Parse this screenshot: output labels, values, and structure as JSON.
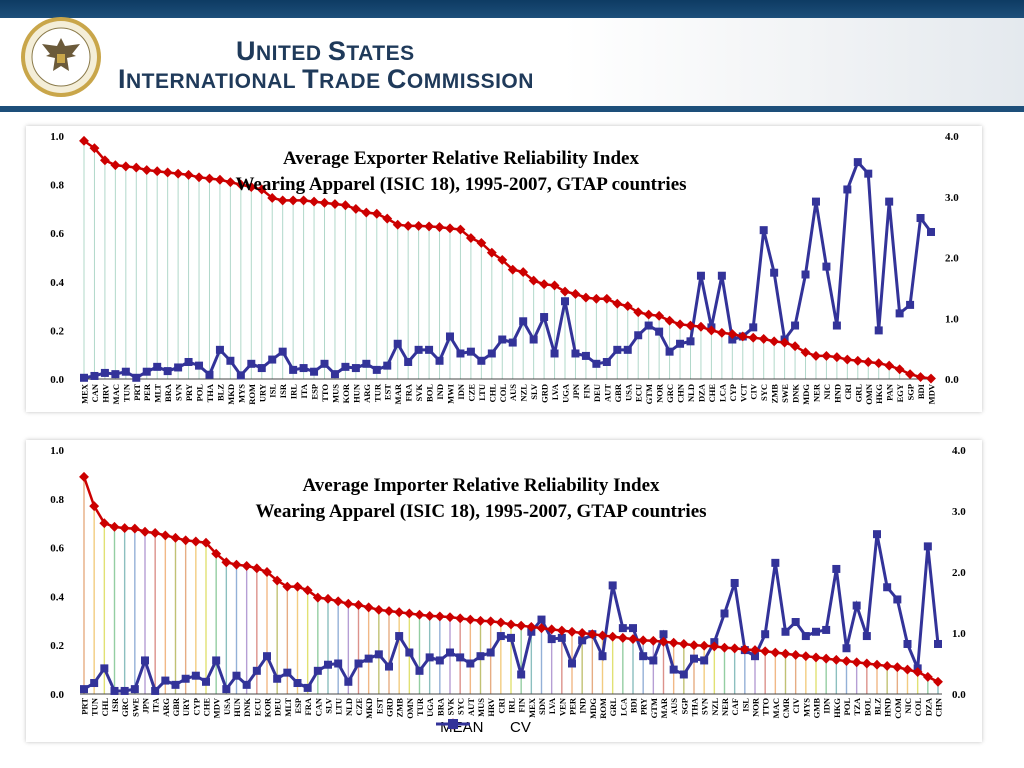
{
  "header": {
    "line1_big1": "U",
    "line1_rest1": "NITED ",
    "line1_big2": "S",
    "line1_rest2": "TATES",
    "line2_big1": "I",
    "line2_rest1": "NTERNATIONAL ",
    "line2_big2": "T",
    "line2_rest2": "RADE ",
    "line2_big3": "C",
    "line2_rest3": "OMMISSION"
  },
  "colors": {
    "mean": "#cc0000",
    "cv": "#333399",
    "header": "#1d4f7a"
  },
  "chart_data": [
    {
      "type": "line",
      "title": "Average Exporter Relative Reliability Index",
      "subtitle": "Wearing Apparel (ISIC 18), 1995-2007, GTAP countries",
      "left_axis": {
        "ylim": [
          0,
          1
        ],
        "ticks": [
          "0.0",
          "0.2",
          "0.4",
          "0.6",
          "0.8",
          "1.0"
        ]
      },
      "right_axis": {
        "ylim": [
          0,
          4
        ],
        "ticks": [
          "0.0",
          "1.0",
          "2.0",
          "3.0",
          "4.0"
        ]
      },
      "categories": [
        "MEX",
        "CAN",
        "HRV",
        "MAC",
        "TUN",
        "PRT",
        "PER",
        "MLT",
        "BRA",
        "SVN",
        "PRY",
        "POL",
        "THA",
        "BLZ",
        "MKD",
        "MYS",
        "ROM",
        "URY",
        "ISL",
        "ISR",
        "IRL",
        "ITA",
        "ESP",
        "TTO",
        "MUS",
        "KOR",
        "HUN",
        "ARG",
        "TUR",
        "EST",
        "MAR",
        "FRA",
        "SVK",
        "BOL",
        "IND",
        "MWI",
        "IDN",
        "CZE",
        "LTU",
        "CHL",
        "COL",
        "AUS",
        "NZL",
        "SLV",
        "GRD",
        "LVA",
        "UGA",
        "JPN",
        "FIN",
        "DEU",
        "AUT",
        "GBR",
        "USA",
        "ECU",
        "GTM",
        "NOR",
        "GRC",
        "CHN",
        "NLD",
        "DZA",
        "CHE",
        "LCA",
        "CYP",
        "VCT",
        "CIV",
        "SYC",
        "ZMB",
        "SWE",
        "DNK",
        "MDG",
        "NER",
        "NIC",
        "HND",
        "CRI",
        "GRL",
        "OMN",
        "HKG",
        "PAN",
        "EGY",
        "SGP",
        "BDI",
        "MDV"
      ],
      "series": [
        {
          "name": "MEAN",
          "axis": "left",
          "values": [
            0.98,
            0.95,
            0.9,
            0.88,
            0.875,
            0.87,
            0.86,
            0.855,
            0.85,
            0.845,
            0.84,
            0.83,
            0.825,
            0.82,
            0.81,
            0.8,
            0.79,
            0.78,
            0.745,
            0.735,
            0.735,
            0.735,
            0.73,
            0.725,
            0.72,
            0.715,
            0.7,
            0.685,
            0.68,
            0.66,
            0.635,
            0.63,
            0.63,
            0.628,
            0.625,
            0.62,
            0.615,
            0.58,
            0.56,
            0.52,
            0.49,
            0.45,
            0.44,
            0.405,
            0.39,
            0.385,
            0.36,
            0.35,
            0.335,
            0.33,
            0.33,
            0.31,
            0.3,
            0.275,
            0.265,
            0.26,
            0.24,
            0.225,
            0.22,
            0.215,
            0.2,
            0.19,
            0.185,
            0.175,
            0.17,
            0.165,
            0.155,
            0.15,
            0.135,
            0.11,
            0.095,
            0.095,
            0.09,
            0.08,
            0.075,
            0.07,
            0.065,
            0.055,
            0.04,
            0.02,
            0.008,
            0.002
          ]
        },
        {
          "name": "CV",
          "axis": "right",
          "values": [
            0.02,
            0.05,
            0.1,
            0.08,
            0.12,
            0.02,
            0.12,
            0.2,
            0.13,
            0.19,
            0.28,
            0.22,
            0.07,
            0.48,
            0.3,
            0.06,
            0.25,
            0.18,
            0.32,
            0.45,
            0.15,
            0.18,
            0.12,
            0.25,
            0.08,
            0.2,
            0.18,
            0.25,
            0.15,
            0.22,
            0.58,
            0.28,
            0.48,
            0.48,
            0.3,
            0.7,
            0.42,
            0.45,
            0.3,
            0.42,
            0.65,
            0.6,
            0.95,
            0.65,
            1.02,
            0.42,
            1.28,
            0.42,
            0.38,
            0.25,
            0.28,
            0.48,
            0.48,
            0.72,
            0.88,
            0.78,
            0.45,
            0.58,
            0.62,
            1.7,
            0.85,
            1.7,
            0.65,
            0.7,
            0.85,
            2.45,
            1.75,
            0.65,
            0.88,
            1.72,
            2.92,
            1.85,
            0.88,
            3.12,
            3.57,
            3.38,
            0.8,
            2.92,
            1.08,
            1.22,
            2.65,
            2.42
          ]
        }
      ]
    },
    {
      "type": "line",
      "title": "Average Importer Relative Reliability Index",
      "subtitle": "Wearing Apparel (ISIC 18), 1995-2007, GTAP countries",
      "left_axis": {
        "ylim": [
          0,
          1
        ],
        "ticks": [
          "0.0",
          "0.2",
          "0.4",
          "0.6",
          "0.8",
          "1.0"
        ]
      },
      "right_axis": {
        "ylim": [
          0,
          4
        ],
        "ticks": [
          "0.0",
          "1.0",
          "2.0",
          "3.0",
          "4.0"
        ]
      },
      "categories": [
        "PRT",
        "TUN",
        "CHL",
        "ISR",
        "GRC",
        "SWE",
        "JPN",
        "ITA",
        "ARG",
        "GBR",
        "URY",
        "CYP",
        "CHE",
        "MDV",
        "USA",
        "HUN",
        "DNK",
        "ECU",
        "KOR",
        "DEU",
        "MLT",
        "ESP",
        "FRA",
        "CAN",
        "SLV",
        "LTU",
        "NLD",
        "CZE",
        "MKD",
        "EST",
        "GRD",
        "ZMB",
        "OMN",
        "TUR",
        "UGA",
        "BRA",
        "SVK",
        "SYC",
        "AUT",
        "MUS",
        "HRV",
        "CRI",
        "IRL",
        "FIN",
        "MEX",
        "SDN",
        "LVA",
        "VEN",
        "PER",
        "IND",
        "MDG",
        "ROM",
        "GRL",
        "LCA",
        "BDI",
        "PRY",
        "GTM",
        "MAR",
        "AUS",
        "SGP",
        "THA",
        "SVN",
        "NZL",
        "NER",
        "CAF",
        "ISL",
        "NOR",
        "TTO",
        "MAC",
        "CMR",
        "CIV",
        "MYS",
        "GMB",
        "IDN",
        "HKG",
        "POL",
        "TZA",
        "BOL",
        "BLZ",
        "HND",
        "COM",
        "NIC",
        "COL",
        "DZA",
        "CHN"
      ],
      "series": [
        {
          "name": "MEAN",
          "axis": "left",
          "values": [
            0.89,
            0.77,
            0.7,
            0.685,
            0.68,
            0.678,
            0.665,
            0.66,
            0.65,
            0.64,
            0.63,
            0.625,
            0.62,
            0.575,
            0.54,
            0.53,
            0.525,
            0.515,
            0.5,
            0.465,
            0.44,
            0.44,
            0.425,
            0.395,
            0.39,
            0.38,
            0.37,
            0.365,
            0.355,
            0.345,
            0.34,
            0.335,
            0.33,
            0.325,
            0.32,
            0.318,
            0.315,
            0.31,
            0.305,
            0.3,
            0.298,
            0.293,
            0.285,
            0.28,
            0.275,
            0.27,
            0.265,
            0.26,
            0.255,
            0.25,
            0.245,
            0.24,
            0.235,
            0.23,
            0.225,
            0.22,
            0.218,
            0.214,
            0.21,
            0.205,
            0.2,
            0.198,
            0.195,
            0.19,
            0.187,
            0.183,
            0.18,
            0.175,
            0.17,
            0.165,
            0.16,
            0.155,
            0.15,
            0.145,
            0.14,
            0.135,
            0.13,
            0.125,
            0.12,
            0.115,
            0.11,
            0.1,
            0.09,
            0.07,
            0.05
          ]
        },
        {
          "name": "CV",
          "axis": "right",
          "values": [
            0.08,
            0.18,
            0.42,
            0.05,
            0.05,
            0.08,
            0.55,
            0.05,
            0.22,
            0.15,
            0.25,
            0.3,
            0.2,
            0.55,
            0.08,
            0.3,
            0.15,
            0.38,
            0.62,
            0.25,
            0.35,
            0.18,
            0.1,
            0.38,
            0.48,
            0.5,
            0.2,
            0.5,
            0.58,
            0.65,
            0.45,
            0.95,
            0.68,
            0.38,
            0.6,
            0.55,
            0.68,
            0.6,
            0.5,
            0.62,
            0.68,
            0.95,
            0.92,
            0.32,
            1.02,
            1.22,
            0.9,
            0.92,
            0.5,
            0.88,
            0.98,
            0.62,
            1.78,
            1.08,
            1.08,
            0.62,
            0.55,
            0.98,
            0.4,
            0.32,
            0.58,
            0.55,
            0.85,
            1.32,
            1.82,
            0.72,
            0.62,
            0.98,
            2.15,
            1.02,
            1.18,
            0.95,
            1.02,
            1.05,
            2.05,
            0.75,
            1.45,
            0.95,
            2.62,
            1.75,
            1.55,
            0.82,
            0.42,
            2.42,
            0.82
          ]
        }
      ]
    }
  ]
}
